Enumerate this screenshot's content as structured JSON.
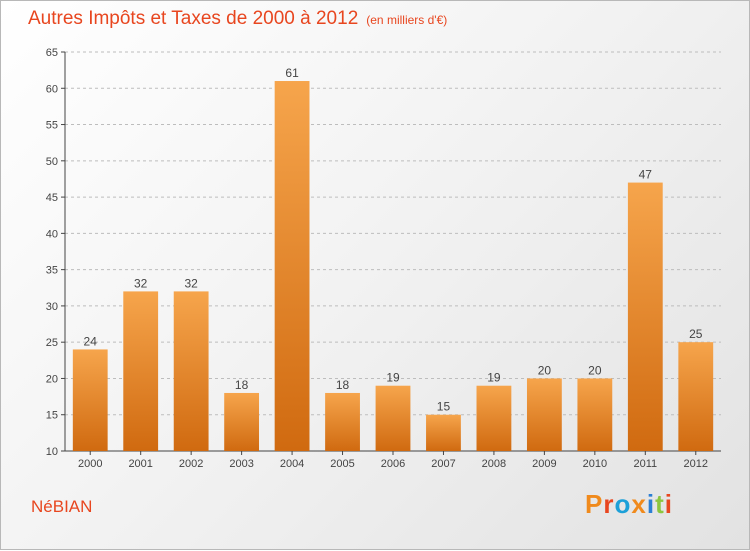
{
  "header": {
    "title": "Autres Impôts et Taxes de 2000 à 2012",
    "subtitle": "(en milliers d'€)"
  },
  "footer": {
    "commune": "NéBIAN",
    "logo_text": "Proxiti",
    "logo_colors": [
      "#f08a1c",
      "#e8461f",
      "#1ca0d8",
      "#f08a1c",
      "#2b7fd4",
      "#8cc63f",
      "#e8461f"
    ]
  },
  "colors": {
    "accent": "#e8461f",
    "bar_top": "#f6a54c",
    "bar_bottom": "#d06a10",
    "axis": "#444444",
    "grid": "#bdbdbd"
  },
  "chart_data": {
    "type": "bar",
    "title": "Autres Impôts et Taxes de 2000 à 2012",
    "subtitle": "(en milliers d'€)",
    "categories": [
      "2000",
      "2001",
      "2002",
      "2003",
      "2004",
      "2005",
      "2006",
      "2007",
      "2008",
      "2009",
      "2010",
      "2011",
      "2012"
    ],
    "values": [
      24,
      32,
      32,
      18,
      61,
      18,
      19,
      15,
      19,
      20,
      20,
      47,
      25
    ],
    "ylim": [
      10,
      65
    ],
    "yticks": [
      10,
      15,
      20,
      25,
      30,
      35,
      40,
      45,
      50,
      55,
      60,
      65
    ],
    "grid": "horizontal dashed",
    "xlabel": "",
    "ylabel": "",
    "data_labels": true
  }
}
